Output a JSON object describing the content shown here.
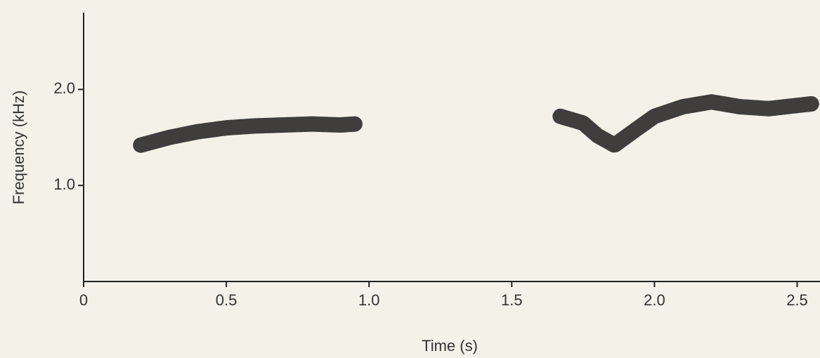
{
  "chart_data": {
    "type": "spectrogram",
    "xlabel": "Time (s)",
    "ylabel": "Frequency (kHz)",
    "xlim": [
      0,
      2.58
    ],
    "ylim": [
      0,
      2.8
    ],
    "xticks": [
      0,
      0.5,
      {
        "value": 1,
        "label": "1.0"
      },
      1.5,
      {
        "value": 2,
        "label": "2.0"
      },
      2.5
    ],
    "yticks": [
      {
        "value": 1,
        "label": "1.0"
      },
      {
        "value": 2,
        "label": "2.0"
      }
    ],
    "series": [
      {
        "color": "#1e1e1e",
        "x": [
          0.2,
          0.3,
          0.4,
          0.5,
          0.6,
          0.7,
          0.8,
          0.9,
          0.95
        ],
        "values": [
          1.42,
          1.5,
          1.56,
          1.6,
          1.62,
          1.63,
          1.64,
          1.63,
          1.64
        ]
      },
      {
        "color": "#1e1e1e",
        "x": [
          1.67,
          1.75,
          1.8,
          1.86,
          1.92,
          2.0,
          2.1,
          2.2,
          2.3,
          2.4,
          2.55
        ],
        "values": [
          1.72,
          1.65,
          1.52,
          1.42,
          1.55,
          1.72,
          1.82,
          1.87,
          1.82,
          1.8,
          1.85
        ]
      }
    ]
  }
}
